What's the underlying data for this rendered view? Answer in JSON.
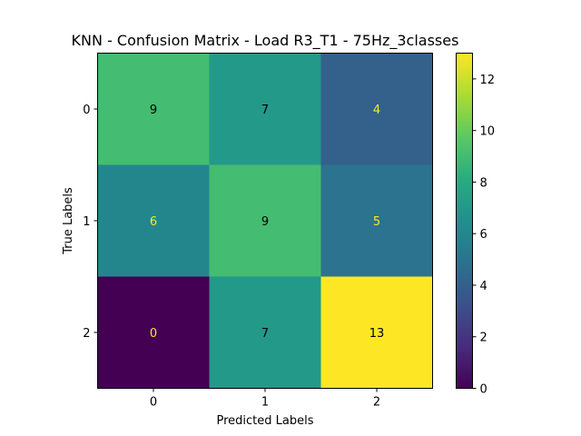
{
  "chart_data": {
    "type": "heatmap",
    "title": "KNN - Confusion Matrix - Load R3_T1 - 75Hz_3classes",
    "xlabel": "Predicted Labels",
    "ylabel": "True Labels",
    "x_categories": [
      "0",
      "1",
      "2"
    ],
    "y_categories": [
      "0",
      "1",
      "2"
    ],
    "matrix": [
      [
        9,
        7,
        4
      ],
      [
        6,
        9,
        5
      ],
      [
        0,
        7,
        13
      ]
    ],
    "colormap": "viridis",
    "vmin": 0,
    "vmax": 13,
    "colorbar_ticks": [
      0,
      2,
      4,
      6,
      8,
      10,
      12
    ],
    "text_color_dark": "#000000",
    "text_color_light": "#fde725"
  }
}
